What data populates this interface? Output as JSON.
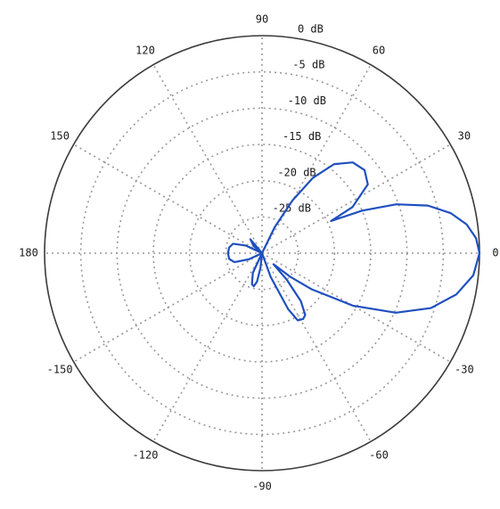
{
  "chart_data": {
    "type": "polar-line",
    "title": "",
    "radial_unit": "dB",
    "radial_range": [
      -30,
      0
    ],
    "grid": true,
    "angle_ticks": [
      {
        "angle": 0,
        "label": "0"
      },
      {
        "angle": 30,
        "label": "30"
      },
      {
        "angle": 60,
        "label": "60"
      },
      {
        "angle": 90,
        "label": "90"
      },
      {
        "angle": 120,
        "label": "120"
      },
      {
        "angle": 150,
        "label": "150"
      },
      {
        "angle": 180,
        "label": "180"
      },
      {
        "angle": -150,
        "label": "-150"
      },
      {
        "angle": -120,
        "label": "-120"
      },
      {
        "angle": -90,
        "label": "-90"
      },
      {
        "angle": -60,
        "label": "-60"
      },
      {
        "angle": -30,
        "label": "-30"
      }
    ],
    "radial_ticks": [
      {
        "value": 0,
        "label": "0 dB"
      },
      {
        "value": -5,
        "label": "-5 dB"
      },
      {
        "value": -10,
        "label": "-10 dB"
      },
      {
        "value": -15,
        "label": "-15 dB"
      },
      {
        "value": -20,
        "label": "-20 dB"
      },
      {
        "value": -25,
        "label": "-25 dB"
      }
    ],
    "series": [
      {
        "color": "#1f4fbf",
        "points": [
          [
            0,
            0
          ],
          [
            4,
            -0.4
          ],
          [
            8,
            -1.5
          ],
          [
            12,
            -3.4
          ],
          [
            16,
            -6.2
          ],
          [
            20,
            -10.3
          ],
          [
            23,
            -15
          ],
          [
            25,
            -19.5
          ],
          [
            27,
            -16
          ],
          [
            33,
            -12.6
          ],
          [
            39,
            -11.8
          ],
          [
            45,
            -12.3
          ],
          [
            51,
            -14.2
          ],
          [
            56,
            -17.5
          ],
          [
            60,
            -21.6
          ],
          [
            64,
            -26
          ],
          [
            68,
            -30
          ],
          [
            120,
            -30
          ],
          [
            130,
            -27.5
          ],
          [
            140,
            -28.5
          ],
          [
            150,
            -30
          ],
          [
            155,
            -27.5
          ],
          [
            162,
            -25.8
          ],
          [
            170,
            -25.4
          ],
          [
            180,
            -25.3
          ],
          [
            -170,
            -25.4
          ],
          [
            -162,
            -26
          ],
          [
            -155,
            -28
          ],
          [
            -150,
            -30
          ],
          [
            -125,
            -30
          ],
          [
            -115,
            -27
          ],
          [
            -108,
            -25.5
          ],
          [
            -104,
            -25.3
          ],
          [
            -100,
            -26
          ],
          [
            -96,
            -28
          ],
          [
            -92,
            -30
          ],
          [
            -75,
            -30
          ],
          [
            -70,
            -26.5
          ],
          [
            -65,
            -21.5
          ],
          [
            -62,
            -19.5
          ],
          [
            -58,
            -19.3
          ],
          [
            -55,
            -19.6
          ],
          [
            -51,
            -21.5
          ],
          [
            -47,
            -25
          ],
          [
            -44,
            -27.8
          ],
          [
            -40,
            -25
          ],
          [
            -36,
            -21.5
          ],
          [
            -30,
            -15.5
          ],
          [
            -24,
            -9.8
          ],
          [
            -18,
            -5.5
          ],
          [
            -12,
            -2.6
          ],
          [
            -6,
            -0.7
          ],
          [
            0,
            0
          ]
        ]
      }
    ]
  }
}
